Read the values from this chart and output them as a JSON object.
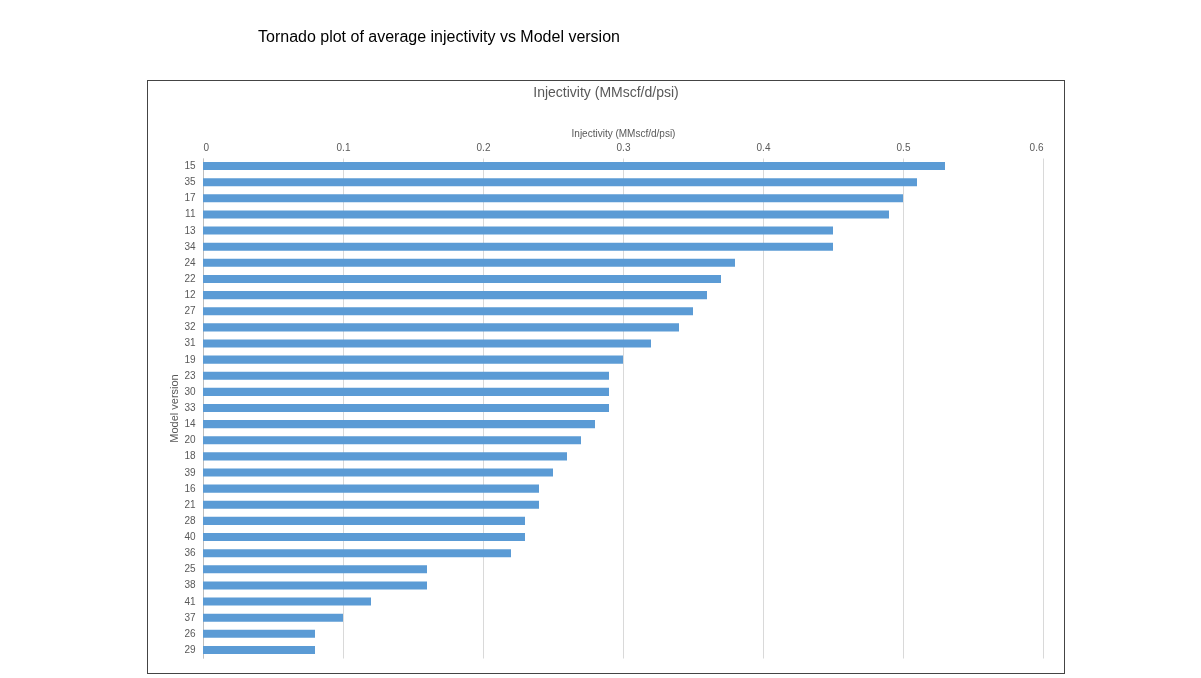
{
  "chart_data": {
    "type": "bar",
    "orientation": "horizontal",
    "title": "Tornado plot of average injectivity vs Model version",
    "subtitle": "Injectivity (MMscf/d/psi)",
    "xlabel": "Injectivity (MMscf/d/psi)",
    "ylabel": "Model version",
    "categories": [
      "15",
      "35",
      "17",
      "11",
      "13",
      "34",
      "24",
      "22",
      "12",
      "27",
      "32",
      "31",
      "19",
      "23",
      "30",
      "33",
      "14",
      "20",
      "18",
      "39",
      "16",
      "21",
      "28",
      "40",
      "36",
      "25",
      "38",
      "41",
      "37",
      "26",
      "29"
    ],
    "values": [
      0.53,
      0.51,
      0.5,
      0.49,
      0.45,
      0.45,
      0.38,
      0.37,
      0.36,
      0.35,
      0.34,
      0.32,
      0.3,
      0.29,
      0.29,
      0.29,
      0.28,
      0.27,
      0.26,
      0.25,
      0.24,
      0.24,
      0.23,
      0.23,
      0.22,
      0.16,
      0.16,
      0.12,
      0.1,
      0.08,
      0.08
    ],
    "color": "#5b9bd5",
    "xlim": [
      0,
      0.6
    ],
    "xticks": [
      0,
      0.1,
      0.2,
      0.3,
      0.4,
      0.5,
      0.6
    ],
    "grid": "x"
  }
}
